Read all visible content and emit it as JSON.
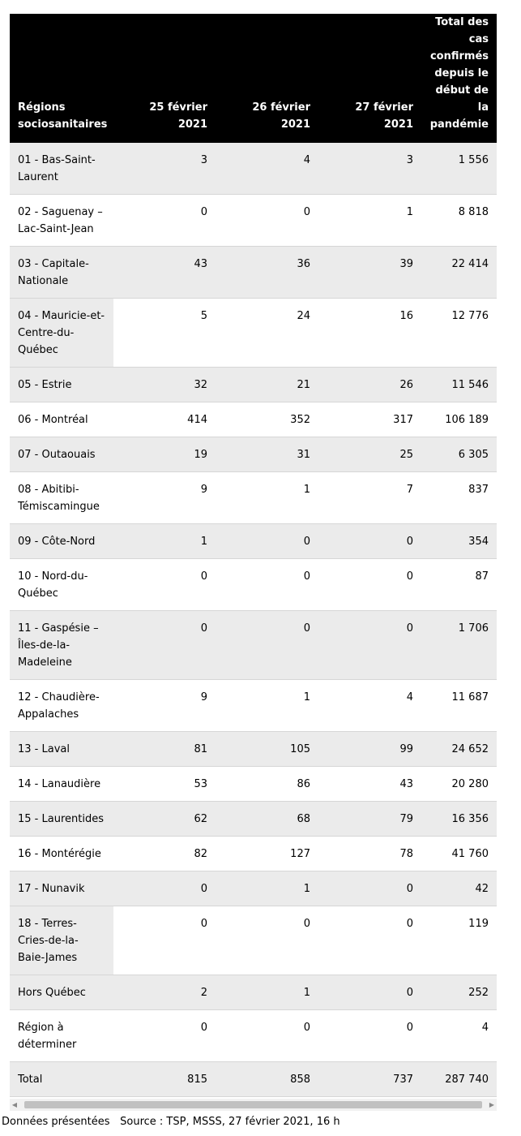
{
  "table": {
    "headers": [
      "Régions sociosanitaires",
      "25 février 2021",
      "26 février 2021",
      "27 février 2021",
      "Total des cas confirmés depuis le début de la pandémie"
    ],
    "rows": [
      {
        "region": "01 - Bas-Saint-Laurent",
        "d1": "3",
        "d2": "4",
        "d3": "3",
        "total": "1 556"
      },
      {
        "region": "02 - Saguenay – Lac-Saint-Jean",
        "d1": "0",
        "d2": "0",
        "d3": "1",
        "total": "8 818"
      },
      {
        "region": "03 - Capitale-Nationale",
        "d1": "43",
        "d2": "36",
        "d3": "39",
        "total": "22 414"
      },
      {
        "region": "04 - Mauricie-et-Centre-du-Québec",
        "d1": "5",
        "d2": "24",
        "d3": "16",
        "total": "12 776"
      },
      {
        "region": "05 - Estrie",
        "d1": "32",
        "d2": "21",
        "d3": "26",
        "total": "11 546"
      },
      {
        "region": "06 - Montréal",
        "d1": "414",
        "d2": "352",
        "d3": "317",
        "total": "106 189"
      },
      {
        "region": "07 - Outaouais",
        "d1": "19",
        "d2": "31",
        "d3": "25",
        "total": "6 305"
      },
      {
        "region": "08 - Abitibi-Témiscamingue",
        "d1": "9",
        "d2": "1",
        "d3": "7",
        "total": "837"
      },
      {
        "region": "09 - Côte-Nord",
        "d1": "1",
        "d2": "0",
        "d3": "0",
        "total": "354"
      },
      {
        "region": "10 - Nord-du-Québec",
        "d1": "0",
        "d2": "0",
        "d3": "0",
        "total": "87"
      },
      {
        "region": "11 - Gaspésie – Îles-de-la-Madeleine",
        "d1": "0",
        "d2": "0",
        "d3": "0",
        "total": "1 706"
      },
      {
        "region": "12 - Chaudière-Appalaches",
        "d1": "9",
        "d2": "1",
        "d3": "4",
        "total": "11 687"
      },
      {
        "region": "13 - Laval",
        "d1": "81",
        "d2": "105",
        "d3": "99",
        "total": "24 652"
      },
      {
        "region": "14 - Lanaudière",
        "d1": "53",
        "d2": "86",
        "d3": "43",
        "total": "20 280"
      },
      {
        "region": "15 - Laurentides",
        "d1": "62",
        "d2": "68",
        "d3": "79",
        "total": "16 356"
      },
      {
        "region": "16 - Montérégie",
        "d1": "82",
        "d2": "127",
        "d3": "78",
        "total": "41 760"
      },
      {
        "region": "17 - Nunavik",
        "d1": "0",
        "d2": "1",
        "d3": "0",
        "total": "42"
      },
      {
        "region": "18 - Terres-Cries-de-la-Baie-James",
        "d1": "0",
        "d2": "0",
        "d3": "0",
        "total": "119"
      },
      {
        "region": "Hors Québec",
        "d1": "2",
        "d2": "1",
        "d3": "0",
        "total": "252"
      },
      {
        "region": "Région à déterminer",
        "d1": "0",
        "d2": "0",
        "d3": "0",
        "total": "4"
      },
      {
        "region": "Total",
        "d1": "815",
        "d2": "858",
        "d3": "737",
        "total": "287 740"
      }
    ]
  },
  "footnote": {
    "left": "Données présentées",
    "right": "Source : TSP, MSSS, 27 février 2021, 16 h"
  }
}
